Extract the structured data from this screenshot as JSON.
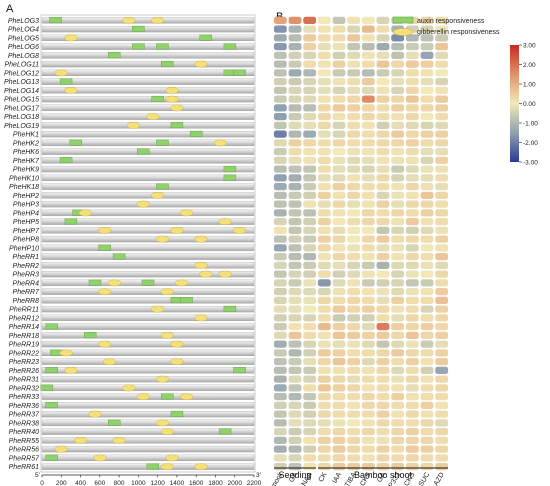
{
  "chart_data": [
    {
      "panel": "A",
      "type": "gene-structure",
      "x_ticks": [
        "0",
        "200",
        "400",
        "600",
        "800",
        "1000",
        "1200",
        "1400",
        "1600",
        "1800",
        "2000",
        "2200"
      ],
      "xlim": [
        0,
        2200
      ],
      "end_labels": {
        "start": "5'",
        "end": "3'"
      },
      "legend": [
        {
          "name": "auxin responsiveness",
          "shape": "rect",
          "color": "#8fd16a"
        },
        {
          "name": "gibberellin responsiveness",
          "shape": "ellipse",
          "color": "#f4e07a"
        }
      ],
      "genes": [
        {
          "name": "PheLOG3",
          "auxin": [
            140
          ],
          "gib": [
            900,
            1200
          ]
        },
        {
          "name": "PheLOG4",
          "auxin": [
            1000
          ],
          "gib": []
        },
        {
          "name": "PheLOG5",
          "auxin": [
            1700
          ],
          "gib": [
            300
          ]
        },
        {
          "name": "PheLOG6",
          "auxin": [
            1000,
            1250,
            1950
          ],
          "gib": []
        },
        {
          "name": "PheLOG8",
          "auxin": [
            750
          ],
          "gib": []
        },
        {
          "name": "PheLOG11",
          "auxin": [
            1300
          ],
          "gib": [
            1650
          ]
        },
        {
          "name": "PheLOG12",
          "auxin": [
            1950,
            2050
          ],
          "gib": [
            200
          ]
        },
        {
          "name": "PheLOG13",
          "auxin": [
            250
          ],
          "gib": []
        },
        {
          "name": "PheLOG14",
          "auxin": [],
          "gib": [
            300,
            1350
          ]
        },
        {
          "name": "PheLOG15",
          "auxin": [
            1200
          ],
          "gib": [
            1350
          ]
        },
        {
          "name": "PheLOG17",
          "auxin": [],
          "gib": [
            1400
          ]
        },
        {
          "name": "PheLOG18",
          "auxin": [],
          "gib": [
            1150
          ]
        },
        {
          "name": "PheLOG19",
          "auxin": [
            1400
          ],
          "gib": [
            950
          ]
        },
        {
          "name": "PheHK1",
          "auxin": [
            1600
          ],
          "gib": []
        },
        {
          "name": "PheHK2",
          "auxin": [
            350,
            1250
          ],
          "gib": [
            1850
          ]
        },
        {
          "name": "PheHK6",
          "auxin": [
            1050
          ],
          "gib": []
        },
        {
          "name": "PheHK7",
          "auxin": [
            250
          ],
          "gib": []
        },
        {
          "name": "PheHK9",
          "auxin": [
            1950
          ],
          "gib": []
        },
        {
          "name": "PheHK10",
          "auxin": [
            1950
          ],
          "gib": []
        },
        {
          "name": "PheHK18",
          "auxin": [
            1250
          ],
          "gib": []
        },
        {
          "name": "PheHP2",
          "auxin": [],
          "gib": [
            1200
          ]
        },
        {
          "name": "PheHP3",
          "auxin": [],
          "gib": [
            1050
          ]
        },
        {
          "name": "PheHP4",
          "auxin": [
            380
          ],
          "gib": [
            450,
            1500
          ]
        },
        {
          "name": "PheHP5",
          "auxin": [
            300
          ],
          "gib": [
            1900
          ]
        },
        {
          "name": "PheHP7",
          "auxin": [],
          "gib": [
            650,
            1400,
            2050
          ]
        },
        {
          "name": "PheHP8",
          "auxin": [],
          "gib": [
            1250,
            1650
          ]
        },
        {
          "name": "PheHP10",
          "auxin": [
            650
          ],
          "gib": []
        },
        {
          "name": "PheRR1",
          "auxin": [
            800
          ],
          "gib": []
        },
        {
          "name": "PheRR2",
          "auxin": [],
          "gib": [
            1650
          ]
        },
        {
          "name": "PheRR3",
          "auxin": [],
          "gib": [
            1700,
            1900
          ]
        },
        {
          "name": "PheRR4",
          "auxin": [
            550,
            1100
          ],
          "gib": [
            750,
            1450
          ]
        },
        {
          "name": "PheRR7",
          "auxin": [],
          "gib": [
            650,
            1300
          ]
        },
        {
          "name": "PheRR8",
          "auxin": [
            1400,
            1500
          ],
          "gib": []
        },
        {
          "name": "PheRR11",
          "auxin": [
            1950
          ],
          "gib": [
            1200
          ]
        },
        {
          "name": "PheRR12",
          "auxin": [],
          "gib": [
            1650
          ]
        },
        {
          "name": "PheRR14",
          "auxin": [
            100
          ],
          "gib": []
        },
        {
          "name": "PheRR18",
          "auxin": [
            500
          ],
          "gib": [
            1300
          ]
        },
        {
          "name": "PheRR19",
          "auxin": [],
          "gib": [
            650,
            1400
          ]
        },
        {
          "name": "PheRR22",
          "auxin": [
            150
          ],
          "gib": [
            250
          ]
        },
        {
          "name": "PheRR23",
          "auxin": [],
          "gib": [
            700,
            1400
          ]
        },
        {
          "name": "PheRR26",
          "auxin": [
            100,
            2050
          ],
          "gib": [
            300
          ]
        },
        {
          "name": "PheRR31",
          "auxin": [],
          "gib": [
            1250
          ]
        },
        {
          "name": "PheRR32",
          "auxin": [
            50
          ],
          "gib": [
            900
          ]
        },
        {
          "name": "PheRR33",
          "auxin": [
            1300
          ],
          "gib": [
            1050,
            1500
          ]
        },
        {
          "name": "PheRR36",
          "auxin": [
            100
          ],
          "gib": []
        },
        {
          "name": "PheRR37",
          "auxin": [
            1400
          ],
          "gib": [
            550
          ]
        },
        {
          "name": "PheRR38",
          "auxin": [
            750
          ],
          "gib": [
            1250
          ]
        },
        {
          "name": "PheRR40",
          "auxin": [
            1900
          ],
          "gib": [
            1300
          ]
        },
        {
          "name": "PheRR55",
          "auxin": [],
          "gib": [
            400,
            800
          ]
        },
        {
          "name": "PheRR56",
          "auxin": [],
          "gib": [
            200
          ]
        },
        {
          "name": "PheRR57",
          "auxin": [
            100
          ],
          "gib": [
            600,
            1350
          ]
        },
        {
          "name": "PheRR61",
          "auxin": [
            1150
          ],
          "gib": [
            1300,
            1650
          ]
        }
      ]
    },
    {
      "panel": "B",
      "type": "heatmap",
      "columns": [
        "mock",
        "GA",
        "NAA",
        "CK",
        "IAA",
        "TIBA",
        "CKS",
        "GA",
        "PP333",
        "CKS",
        "SUC",
        "AZD"
      ],
      "groups": [
        {
          "label": "Seeding",
          "start": 0,
          "end": 2
        },
        {
          "label": "Bamboo shoot",
          "start": 3,
          "end": 11
        }
      ],
      "color_scale": {
        "min": -3,
        "max": 3,
        "ticks": [
          "3.00",
          "2.00",
          "1.00",
          "0.00",
          "-1.00",
          "-2.00",
          "-3.00"
        ],
        "colors": [
          "#2b3a97",
          "#8fa0b0",
          "#f2e8b8",
          "#e0926a",
          "#c62a22"
        ]
      },
      "values": [
        [
          1.2,
          1.5,
          2,
          0,
          -0.7,
          0.1,
          0,
          -0.4,
          -0.5,
          0.3,
          0.3,
          0.2
        ],
        [
          -1.7,
          -1.1,
          -0.2,
          0.1,
          0.2,
          -0.4,
          0.8,
          0.2,
          -1.1,
          -0.5,
          -0.4,
          0
        ],
        [
          -1.3,
          -0.9,
          0.5,
          0.2,
          0.2,
          0.6,
          0.1,
          -0.4,
          -1.8,
          -1,
          -0.8,
          -0.6
        ],
        [
          -1.6,
          -1.1,
          0.4,
          -0.2,
          -0.1,
          -0.7,
          -0.9,
          -1.3,
          -0.9,
          -0.6,
          -0.6,
          0.6
        ],
        [
          -0.8,
          -0.5,
          -0.4,
          0.2,
          -0.5,
          -0.3,
          0.1,
          -0.2,
          -0.8,
          -0.2,
          -1.4,
          -0.3
        ],
        [
          -0.9,
          -0.6,
          0.2,
          0.1,
          0.4,
          -0.1,
          0.2,
          0.6,
          0.3,
          0.5,
          0.4,
          0.2
        ],
        [
          -0.8,
          -1.3,
          -1,
          0,
          -0.6,
          -0.6,
          -0.9,
          -0.6,
          -0.4,
          0.2,
          0.1,
          0
        ],
        [
          -0.5,
          -0.6,
          -0.4,
          -0.2,
          0.1,
          0.2,
          0.5,
          0,
          -0.2,
          0.2,
          -0.2,
          -0.4
        ],
        [
          -0.7,
          -0.4,
          -0.4,
          -0.2,
          -0.4,
          -0.2,
          -0.3,
          0.1,
          -0.4,
          0.3,
          0,
          0.1
        ],
        [
          -0.6,
          -0.4,
          -0.3,
          0.1,
          0.2,
          0.3,
          1.6,
          0.4,
          0.3,
          0.6,
          0.2,
          0.5
        ],
        [
          -1.5,
          -0.9,
          -0.9,
          0.3,
          0.5,
          0.4,
          0.3,
          0.2,
          0.4,
          0.3,
          0.3,
          0.4
        ],
        [
          -1.5,
          -0.6,
          -0.3,
          0.3,
          0.1,
          0.2,
          0.3,
          0.2,
          0.1,
          0.3,
          0,
          0.2
        ],
        [
          -0.7,
          -0.3,
          -0.2,
          0.3,
          -0.4,
          0.2,
          0.1,
          -0.5,
          -0.2,
          -0.3,
          -0.4,
          -0.3
        ],
        [
          -2,
          -1,
          -1.3,
          -0.2,
          -0.4,
          0.3,
          0.2,
          0.3,
          0.5,
          0.3,
          0.4,
          0.4
        ],
        [
          -0.3,
          0.4,
          0.3,
          0.2,
          0.3,
          0.2,
          0.2,
          0.3,
          0.3,
          0.4,
          0.2,
          0.3
        ],
        [
          -0.6,
          0.2,
          0.1,
          0.1,
          0,
          -0.1,
          0.1,
          0.2,
          0.1,
          0.2,
          -0.2,
          -0.2
        ],
        [
          -0.4,
          -0.2,
          -0.1,
          0.2,
          -0.1,
          -0.3,
          -0.2,
          0.1,
          -0.1,
          0.1,
          -0.4,
          0.4
        ],
        [
          -0.9,
          -0.8,
          -0.7,
          0.2,
          -0.2,
          -0.3,
          -0.4,
          -0.2,
          -0.6,
          -0.3,
          -0.1,
          -0.1
        ],
        [
          -1.5,
          -1.2,
          -0.7,
          -0.2,
          -0.3,
          0.1,
          -0.2,
          0.3,
          -0.4,
          -0.2,
          -0.2,
          0.2
        ],
        [
          -1.3,
          -1.1,
          -0.6,
          0.1,
          0.4,
          0.3,
          0.2,
          0.2,
          0.1,
          0.3,
          -0.1,
          -0.2
        ],
        [
          -0.9,
          -0.6,
          -0.5,
          0.4,
          0.1,
          0.3,
          0.1,
          -0.4,
          -0.1,
          0.1,
          0.6,
          0.3
        ],
        [
          -0.8,
          -0.8,
          0.1,
          -0.2,
          0.3,
          -0.2,
          0.1,
          0.4,
          -0.2,
          0.3,
          0.3,
          0.2
        ],
        [
          -1.1,
          -0.7,
          -0.8,
          0.2,
          0.1,
          0,
          0.3,
          0.2,
          0.3,
          0.2,
          0.4,
          0.3
        ],
        [
          -0.4,
          -0.7,
          -0.5,
          0.4,
          0,
          0.2,
          0.3,
          0.3,
          0.1,
          0.5,
          0.1,
          0.2
        ],
        [
          0.1,
          -0.7,
          -0.4,
          0.1,
          -0.2,
          0,
          0,
          -0.7,
          -0.4,
          -0.5,
          -0.3,
          -0.1
        ],
        [
          -0.8,
          -0.5,
          -0.6,
          0.4,
          0.3,
          0,
          0.3,
          0.5,
          0.2,
          0.3,
          0.2,
          0.4
        ],
        [
          -1.4,
          -0.8,
          -0.4,
          0.3,
          0.1,
          -0.1,
          0.2,
          -0.2,
          -0.1,
          -0.4,
          0,
          0.1
        ],
        [
          -0.6,
          -0.9,
          -1,
          0.1,
          0.3,
          0.2,
          0.1,
          0.4,
          0.1,
          0.3,
          0.2,
          0.6
        ],
        [
          -0.4,
          -0.7,
          -0.6,
          -0.3,
          -0.2,
          -0.4,
          -0.6,
          -1.1,
          -0.3,
          -0.3,
          -0.1,
          -0.3
        ],
        [
          -0.7,
          -0.4,
          -0.5,
          0.2,
          -0.5,
          -0.3,
          0.1,
          0,
          -0.4,
          -0.1,
          0,
          0.3
        ],
        [
          -0.4,
          -0.6,
          -0.1,
          -1.6,
          -0.3,
          0.1,
          -0.6,
          -0.5,
          -0.4,
          -0.7,
          -0.6,
          0.2
        ],
        [
          -0.5,
          -0.3,
          -0.3,
          -0.4,
          -0.1,
          0.2,
          0.1,
          -0.1,
          -0.3,
          -0.1,
          0.1,
          0.5
        ],
        [
          -0.4,
          -0.2,
          -0.1,
          0.3,
          0.2,
          0.3,
          0.2,
          -0.2,
          0.4,
          0.2,
          0.2,
          0.7
        ],
        [
          -0.2,
          -0.2,
          0,
          0.2,
          0.5,
          0.3,
          0.4,
          0.3,
          0.1,
          0.2,
          -0.4,
          0.4
        ],
        [
          -0.5,
          -0.4,
          -0.4,
          0.2,
          -0.6,
          -0.5,
          -0.5,
          0.2,
          -0.2,
          0.3,
          0.2,
          0.3
        ],
        [
          -0.6,
          0.1,
          0.2,
          0.8,
          0.4,
          0.3,
          -0.3,
          1.8,
          0.4,
          0.3,
          0.4,
          0.3
        ],
        [
          -0.3,
          0.6,
          0.2,
          0.1,
          0.6,
          0.5,
          0.4,
          0.5,
          0.3,
          0.6,
          0.3,
          0.4
        ],
        [
          -1.2,
          -0.8,
          -0.4,
          -0.1,
          -0.2,
          -0.1,
          -0.3,
          -0.7,
          -0.3,
          -0.1,
          -0.6,
          -0.2
        ],
        [
          -0.6,
          -1,
          -0.5,
          0.5,
          0.4,
          0.2,
          0.2,
          0.3,
          0.5,
          0.3,
          0.2,
          0.4
        ],
        [
          -0.8,
          -0.6,
          -0.2,
          0.3,
          0.6,
          0.4,
          -0.3,
          0.4,
          0.2,
          0.4,
          0.1,
          0.5
        ],
        [
          -0.9,
          -0.7,
          -0.6,
          0.1,
          0.1,
          0.2,
          0.1,
          0.3,
          -0.3,
          0.2,
          -0.5,
          -1.4
        ],
        [
          -1.1,
          -0.3,
          -0.4,
          0.4,
          0.3,
          -0.2,
          0.2,
          0.2,
          -0.1,
          0.3,
          0.1,
          0.3
        ],
        [
          -1.3,
          -0.7,
          0.2,
          0.6,
          0.4,
          0.3,
          0.1,
          0.2,
          0.1,
          -0.2,
          0.2,
          0.3
        ],
        [
          -0.9,
          -1,
          -0.7,
          0.3,
          0.2,
          0.2,
          0.3,
          0.2,
          0.4,
          0.1,
          0.2,
          0.2
        ],
        [
          -0.5,
          -0.4,
          -0.6,
          0.2,
          0.2,
          0.1,
          0.3,
          0.3,
          0.2,
          0.2,
          0.4,
          0.1
        ],
        [
          -0.7,
          -0.3,
          -0.5,
          0.3,
          0.2,
          0.2,
          0.2,
          0.4,
          0.1,
          0.3,
          0.1,
          0.2
        ],
        [
          -0.9,
          -0.2,
          -0.3,
          -0.2,
          -0.1,
          0,
          0.1,
          0.3,
          0.2,
          0.2,
          0.3,
          -0.3
        ],
        [
          -0.4,
          -0.6,
          -0.4,
          0.2,
          0.3,
          0.2,
          0.3,
          0.2,
          0.3,
          0.4,
          0.2,
          0.3
        ],
        [
          -1,
          -0.5,
          0.1,
          0.4,
          0.4,
          0.3,
          0.1,
          -0.1,
          0.3,
          0.3,
          0.3,
          0.2
        ],
        [
          -1.2,
          -1,
          -0.5,
          0.3,
          0.5,
          0.3,
          0.2,
          0.4,
          0.2,
          0.5,
          0.4,
          0.3
        ],
        [
          -0.2,
          -0.4,
          0.2,
          0.2,
          0.3,
          0.2,
          0.1,
          0.3,
          0.2,
          0.3,
          0.2,
          0.2
        ],
        [
          -0.5,
          -0.8,
          0.1,
          0.3,
          0.5,
          0.5,
          0.5,
          0.4,
          0.5,
          0.4,
          0.3,
          0.5
        ]
      ]
    }
  ]
}
